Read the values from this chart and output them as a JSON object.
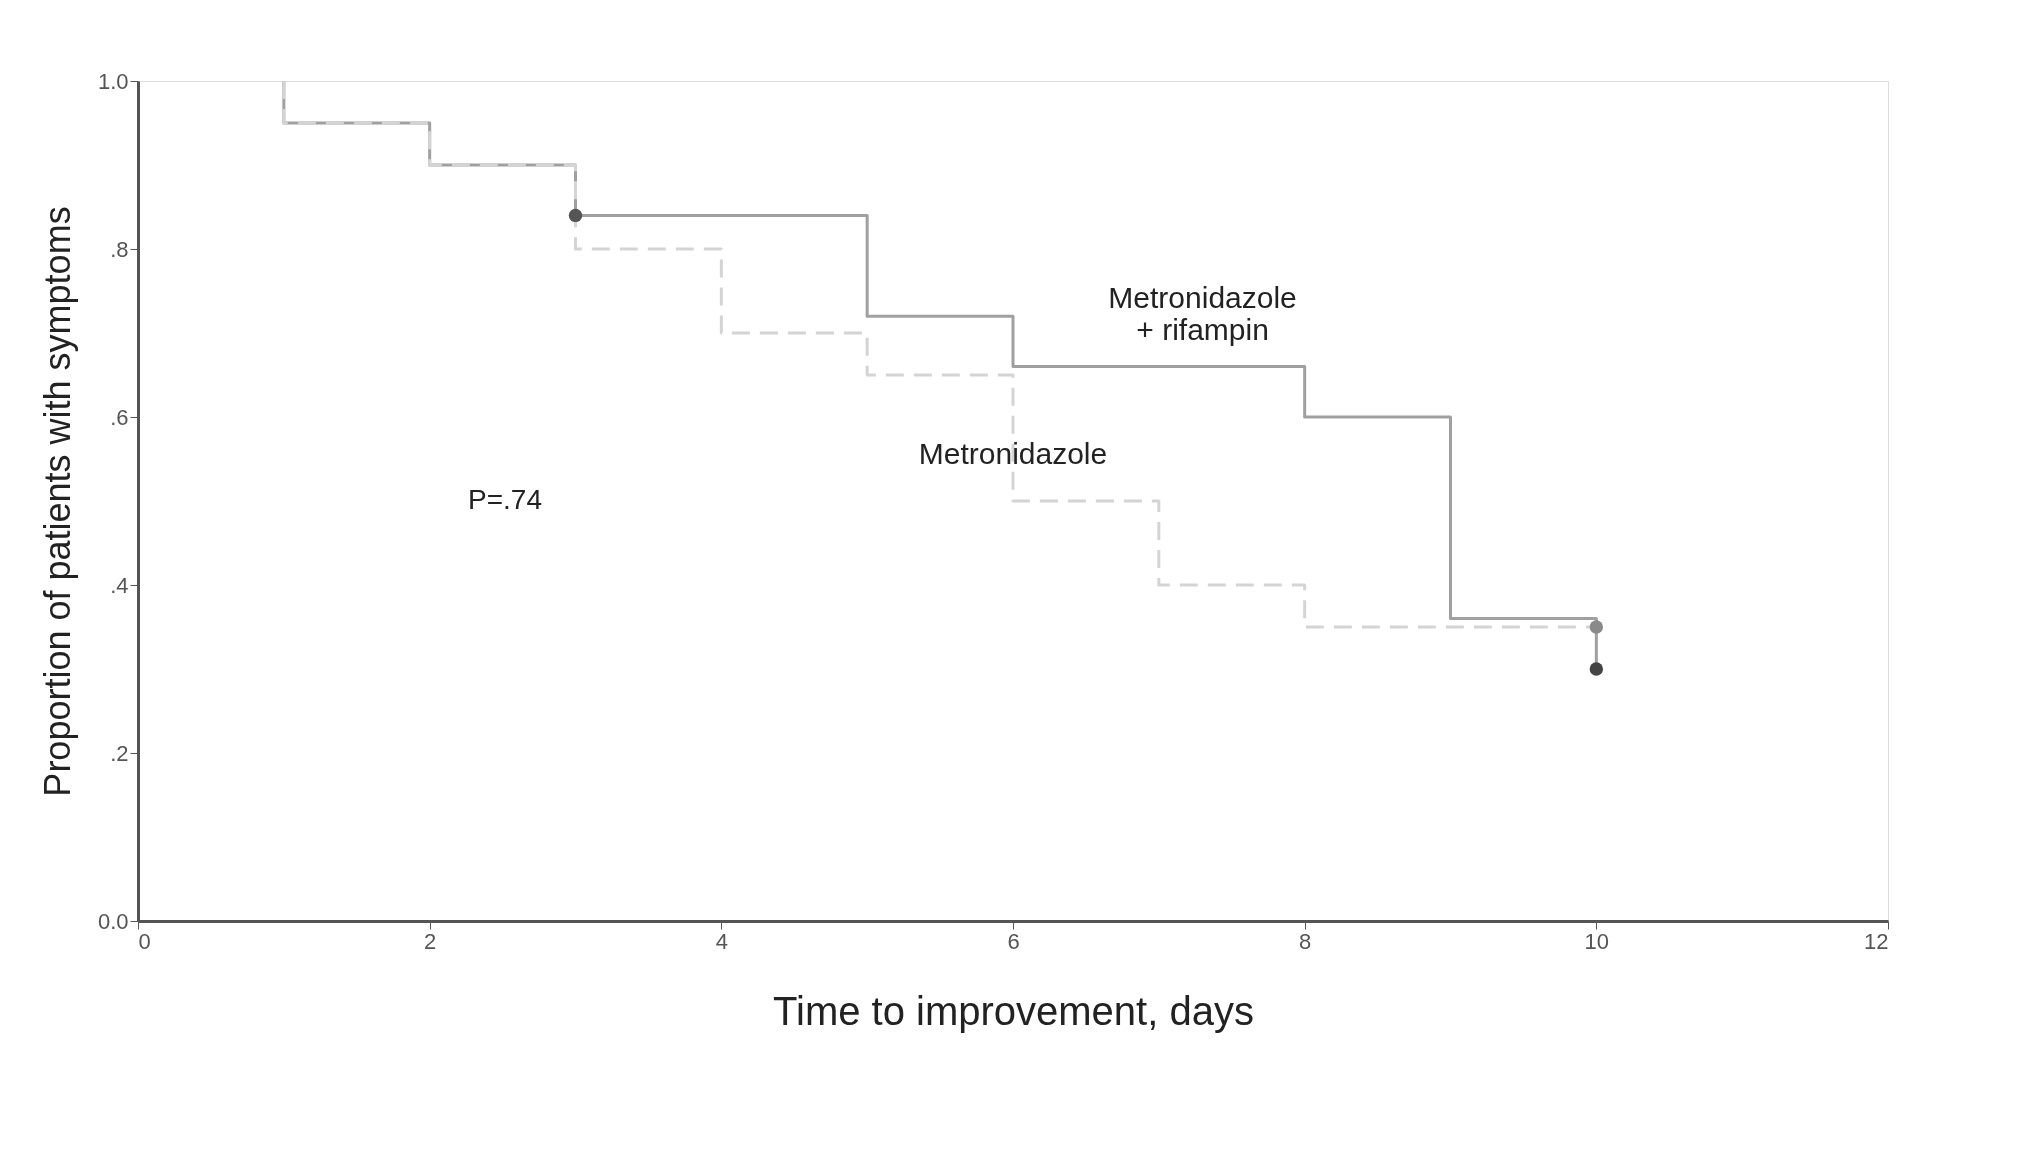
{
  "chart_data": {
    "type": "step",
    "xlabel": "Time to improvement, days",
    "ylabel": "Proportion of patients with symptoms",
    "xlim": [
      0,
      12
    ],
    "xticks": [
      {
        "value": 0,
        "label": "0"
      },
      {
        "value": 2,
        "label": "2"
      },
      {
        "value": 4,
        "label": "4"
      },
      {
        "value": 6,
        "label": "6"
      },
      {
        "value": 8,
        "label": "8"
      },
      {
        "value": 10,
        "label": "10"
      },
      {
        "value": 12,
        "label": "12"
      }
    ],
    "ylim": [
      0,
      1.0
    ],
    "yticks": [
      {
        "value": 0,
        "label": "0.0"
      },
      {
        "value": 0.2,
        "label": ".2"
      },
      {
        "value": 0.4,
        "label": ".4"
      },
      {
        "value": 0.6,
        "label": ".6"
      },
      {
        "value": 0.8,
        "label": ".8"
      },
      {
        "value": 1.0,
        "label": "1.0"
      }
    ],
    "grid": false,
    "legend": false,
    "series": [
      {
        "name": "Metronidazole + rifampin",
        "color": "#a0a0a0",
        "line_style": "solid",
        "x": [
          1,
          1,
          2,
          3,
          5,
          6,
          8,
          9,
          10
        ],
        "values": [
          1.0,
          0.95,
          0.9,
          0.84,
          0.72,
          0.66,
          0.6,
          0.36,
          0.3
        ]
      },
      {
        "name": "Metronidazole",
        "color": "#d4d4d4",
        "line_style": "dashed",
        "x": [
          1,
          1,
          2,
          3,
          4,
          5,
          6,
          7,
          8,
          10
        ],
        "values": [
          1.0,
          0.95,
          0.9,
          0.8,
          0.7,
          0.65,
          0.5,
          0.4,
          0.35,
          0.35
        ]
      },
      {
        "type": "scatter",
        "marker": "circle",
        "x": [
          3,
          10,
          10
        ],
        "values": [
          0.84,
          0.35,
          0.3
        ],
        "colors": [
          "#555555",
          "#8a8a8a",
          "#444444"
        ]
      }
    ],
    "annotations": [
      "P=.74"
    ]
  }
}
